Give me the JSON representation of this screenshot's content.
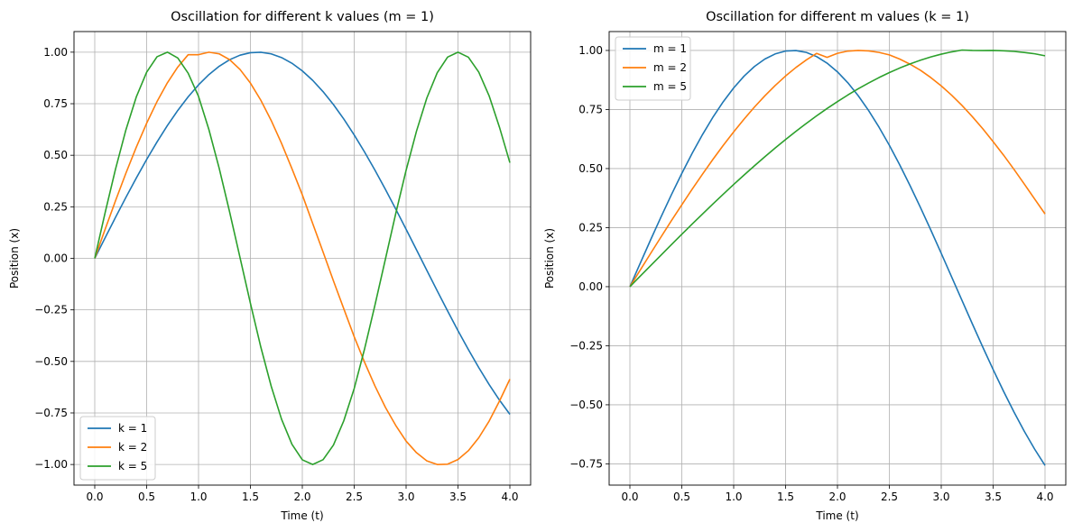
{
  "chart_data": [
    {
      "type": "line",
      "title": "Oscillation for different k values (m = 1)",
      "xlabel": "Time (t)",
      "ylabel": "Position (x)",
      "xlim": [
        -0.2,
        4.2
      ],
      "ylim": [
        -1.1,
        1.1
      ],
      "xticks": [
        0.0,
        0.5,
        1.0,
        1.5,
        2.0,
        2.5,
        3.0,
        3.5,
        4.0
      ],
      "xtick_labels": [
        "0.0",
        "0.5",
        "1.0",
        "1.5",
        "2.0",
        "2.5",
        "3.0",
        "3.5",
        "4.0"
      ],
      "yticks": [
        -1.0,
        -0.75,
        -0.5,
        -0.25,
        0.0,
        0.25,
        0.5,
        0.75,
        1.0
      ],
      "ytick_labels": [
        "−1.00",
        "−0.75",
        "−0.50",
        "−0.25",
        "0.00",
        "0.25",
        "0.50",
        "0.75",
        "1.00"
      ],
      "grid": true,
      "legend_position": "lower-left",
      "x": [
        0.0,
        0.1,
        0.2,
        0.3,
        0.4,
        0.5,
        0.6,
        0.7,
        0.8,
        0.9,
        1.0,
        1.1,
        1.2,
        1.3,
        1.4,
        1.5,
        1.6,
        1.7,
        1.8,
        1.9,
        2.0,
        2.1,
        2.2,
        2.3,
        2.4,
        2.5,
        2.6,
        2.7,
        2.8,
        2.9,
        3.0,
        3.1,
        3.2,
        3.3,
        3.4,
        3.5,
        3.6,
        3.7,
        3.8,
        3.9,
        4.0
      ],
      "series": [
        {
          "name": "k = 1",
          "color": "#1f77b4",
          "values": [
            0.0,
            0.0998,
            0.1987,
            0.2955,
            0.3894,
            0.4794,
            0.5646,
            0.6442,
            0.7174,
            0.7833,
            0.8415,
            0.8912,
            0.932,
            0.9636,
            0.9854,
            0.9975,
            0.9996,
            0.9917,
            0.9738,
            0.9463,
            0.9093,
            0.8632,
            0.8085,
            0.7457,
            0.6755,
            0.5985,
            0.5155,
            0.4274,
            0.335,
            0.2392,
            0.1411,
            0.0416,
            -0.0584,
            -0.1577,
            -0.2555,
            -0.3508,
            -0.4425,
            -0.5298,
            -0.6119,
            -0.6878,
            -0.7568
          ]
        },
        {
          "name": "k = 2",
          "color": "#ff7f0e",
          "values": [
            0.0,
            0.141,
            0.2794,
            0.4128,
            0.5389,
            0.6554,
            0.7603,
            0.8517,
            0.928,
            0.9876,
            0.9878,
            0.9999,
            0.9918,
            0.9636,
            0.916,
            0.85,
            0.7671,
            0.6688,
            0.5572,
            0.4347,
            0.308,
            0.169,
            0.0305,
            -0.1093,
            -0.2452,
            -0.3803,
            -0.5044,
            -0.6191,
            -0.7222,
            -0.8104,
            -0.8865,
            -0.9427,
            -0.9825,
            -1.0,
            -0.9985,
            -0.976,
            -0.933,
            -0.8704,
            -0.7897,
            -0.6923,
            -0.5862
          ]
        },
        {
          "name": "k = 5",
          "color": "#2ca02c",
          "values": [
            0.0,
            0.2218,
            0.4329,
            0.6229,
            0.7824,
            0.9028,
            0.9778,
            1.0,
            0.972,
            0.898,
            0.7852,
            0.6243,
            0.435,
            0.224,
            0.0029,
            -0.2186,
            -0.4303,
            -0.62,
            -0.7804,
            -0.9016,
            -0.9773,
            -1.0,
            -0.9767,
            -0.9056,
            -0.7873,
            -0.6313,
            -0.439,
            -0.2268,
            -0.0053,
            0.2167,
            0.427,
            0.6164,
            0.778,
            0.9002,
            0.9762,
            1.0,
            0.9756,
            0.9035,
            0.7883,
            0.6355,
            0.4638
          ]
        }
      ]
    },
    {
      "type": "line",
      "title": "Oscillation for different m values (k = 1)",
      "xlabel": "Time (t)",
      "ylabel": "Position (x)",
      "xlim": [
        -0.2,
        4.2
      ],
      "ylim": [
        -0.84,
        1.08
      ],
      "xticks": [
        0.0,
        0.5,
        1.0,
        1.5,
        2.0,
        2.5,
        3.0,
        3.5,
        4.0
      ],
      "xtick_labels": [
        "0.0",
        "0.5",
        "1.0",
        "1.5",
        "2.0",
        "2.5",
        "3.0",
        "3.5",
        "4.0"
      ],
      "yticks": [
        -0.75,
        -0.5,
        -0.25,
        0.0,
        0.25,
        0.5,
        0.75,
        1.0
      ],
      "ytick_labels": [
        "−0.75",
        "−0.50",
        "−0.25",
        "0.00",
        "0.25",
        "0.50",
        "0.75",
        "1.00"
      ],
      "grid": true,
      "legend_position": "upper-left",
      "x": [
        0.0,
        0.1,
        0.2,
        0.3,
        0.4,
        0.5,
        0.6,
        0.7,
        0.8,
        0.9,
        1.0,
        1.1,
        1.2,
        1.3,
        1.4,
        1.5,
        1.6,
        1.7,
        1.8,
        1.9,
        2.0,
        2.1,
        2.2,
        2.3,
        2.4,
        2.5,
        2.6,
        2.7,
        2.8,
        2.9,
        3.0,
        3.1,
        3.2,
        3.3,
        3.4,
        3.5,
        3.6,
        3.7,
        3.8,
        3.9,
        4.0
      ],
      "series": [
        {
          "name": "m = 1",
          "color": "#1f77b4",
          "values": [
            0.0,
            0.0998,
            0.1987,
            0.2955,
            0.3894,
            0.4794,
            0.5646,
            0.6442,
            0.7174,
            0.7833,
            0.8415,
            0.8912,
            0.932,
            0.9636,
            0.9854,
            0.9975,
            0.9996,
            0.9917,
            0.9738,
            0.9463,
            0.9093,
            0.8632,
            0.8085,
            0.7457,
            0.6755,
            0.5985,
            0.5155,
            0.4274,
            0.335,
            0.2392,
            0.1411,
            0.0416,
            -0.0584,
            -0.1577,
            -0.2555,
            -0.3508,
            -0.4425,
            -0.5298,
            -0.6119,
            -0.6878,
            -0.7568
          ]
        },
        {
          "name": "m = 2",
          "color": "#ff7f0e",
          "values": [
            0.0,
            0.0707,
            0.141,
            0.2107,
            0.2794,
            0.3466,
            0.4128,
            0.4767,
            0.5389,
            0.5985,
            0.6554,
            0.7093,
            0.7603,
            0.8077,
            0.8517,
            0.8918,
            0.928,
            0.96,
            0.9876,
            0.9708,
            0.9878,
            0.9974,
            0.9999,
            0.9981,
            0.9918,
            0.9812,
            0.9636,
            0.9417,
            0.916,
            0.885,
            0.85,
            0.8107,
            0.7671,
            0.7196,
            0.6688,
            0.614,
            0.5572,
            0.4971,
            0.4347,
            0.3713,
            0.308
          ]
        },
        {
          "name": "m = 5",
          "color": "#2ca02c",
          "values": [
            0.0,
            0.0447,
            0.0893,
            0.1337,
            0.1779,
            0.2217,
            0.2651,
            0.3079,
            0.3502,
            0.3917,
            0.4327,
            0.4727,
            0.5118,
            0.55,
            0.5871,
            0.623,
            0.6578,
            0.6913,
            0.7235,
            0.7543,
            0.7836,
            0.8114,
            0.8377,
            0.8623,
            0.8852,
            0.9063,
            0.9257,
            0.9432,
            0.9588,
            0.9725,
            0.9843,
            0.994,
            1.0018,
            1.0,
            0.9995,
            1.0,
            0.9985,
            0.996,
            0.9915,
            0.986,
            0.9775
          ]
        }
      ]
    }
  ]
}
